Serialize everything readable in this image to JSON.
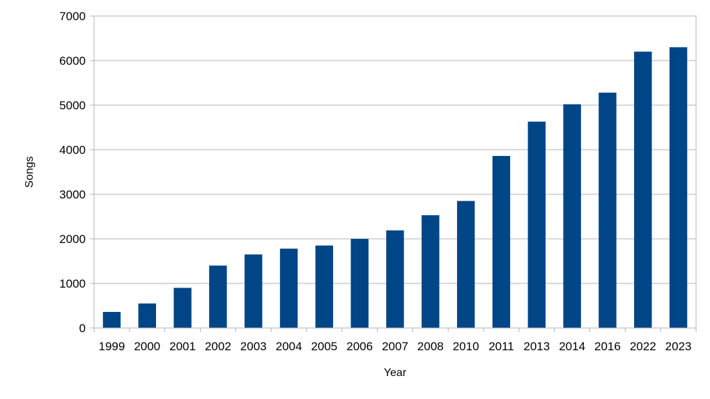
{
  "chart_data": {
    "type": "bar",
    "title": "",
    "xlabel": "Year",
    "ylabel": "Songs",
    "ylim": [
      0,
      7000
    ],
    "yticks": [
      0,
      1000,
      2000,
      3000,
      4000,
      5000,
      6000,
      7000
    ],
    "grid": true,
    "bar_color": "#004586",
    "categories": [
      "1999",
      "2000",
      "2001",
      "2002",
      "2003",
      "2004",
      "2005",
      "2006",
      "2007",
      "2008",
      "2010",
      "2011",
      "2013",
      "2014",
      "2016",
      "2022",
      "2023"
    ],
    "values": [
      360,
      550,
      900,
      1400,
      1650,
      1780,
      1850,
      2000,
      2190,
      2530,
      2850,
      3860,
      4630,
      5020,
      5280,
      6200,
      6300
    ]
  }
}
